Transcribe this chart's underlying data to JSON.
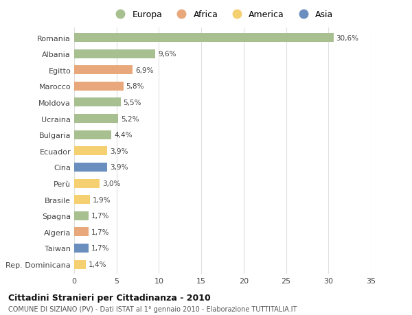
{
  "countries": [
    "Romania",
    "Albania",
    "Egitto",
    "Marocco",
    "Moldova",
    "Ucraina",
    "Bulgaria",
    "Ecuador",
    "Cina",
    "Perù",
    "Brasile",
    "Spagna",
    "Algeria",
    "Taiwan",
    "Rep. Dominicana"
  ],
  "values": [
    30.6,
    9.6,
    6.9,
    5.8,
    5.5,
    5.2,
    4.4,
    3.9,
    3.9,
    3.0,
    1.9,
    1.7,
    1.7,
    1.7,
    1.4
  ],
  "labels": [
    "30,6%",
    "9,6%",
    "6,9%",
    "5,8%",
    "5,5%",
    "5,2%",
    "4,4%",
    "3,9%",
    "3,9%",
    "3,0%",
    "1,9%",
    "1,7%",
    "1,7%",
    "1,7%",
    "1,4%"
  ],
  "continents": [
    "Europa",
    "Europa",
    "Africa",
    "Africa",
    "Europa",
    "Europa",
    "Europa",
    "America",
    "Asia",
    "America",
    "America",
    "Europa",
    "Africa",
    "Asia",
    "America"
  ],
  "continent_colors": {
    "Europa": "#a8c090",
    "Africa": "#e8a87c",
    "America": "#f5d070",
    "Asia": "#6a8fbf"
  },
  "legend_order": [
    "Europa",
    "Africa",
    "America",
    "Asia"
  ],
  "title": "Cittadini Stranieri per Cittadinanza - 2010",
  "subtitle": "COMUNE DI SIZIANO (PV) - Dati ISTAT al 1° gennaio 2010 - Elaborazione TUTTITALIA.IT",
  "xlim": [
    0,
    35
  ],
  "xticks": [
    0,
    5,
    10,
    15,
    20,
    25,
    30,
    35
  ],
  "background_color": "#ffffff",
  "grid_color": "#e0e0e0"
}
